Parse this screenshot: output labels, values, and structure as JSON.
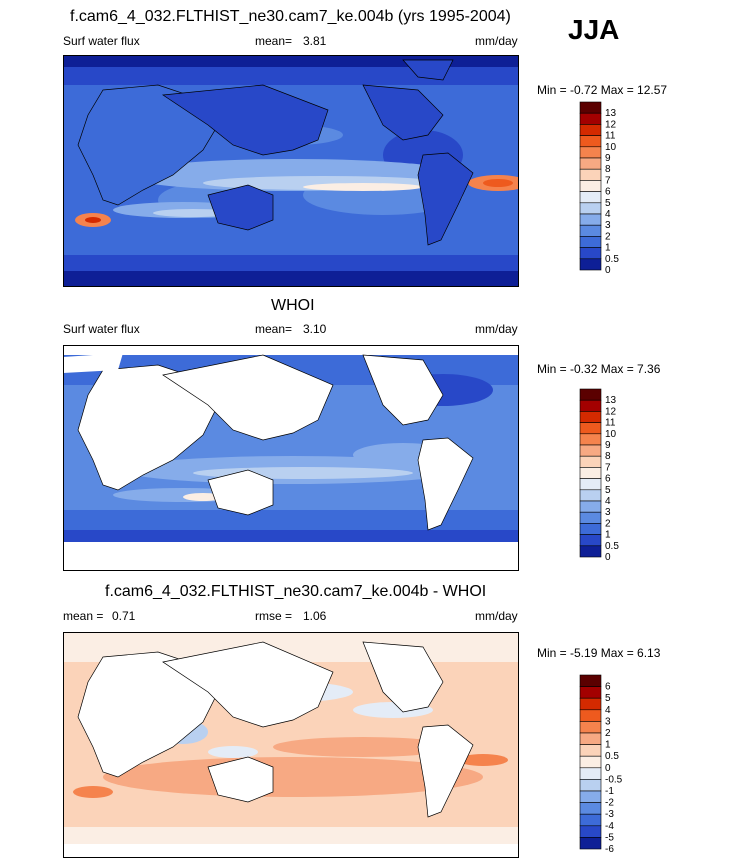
{
  "season": "JJA",
  "chart_data": [
    {
      "type": "heatmap",
      "title": "f.cam6_4_032.FLTHIST_ne30.cam7_ke.004b (yrs 1995-2004)",
      "left_label": "Surf water flux",
      "mean_label": "mean=",
      "mean_value": "3.81",
      "units": "mm/day",
      "min_max_text": "Min =  -0.72 Max =  12.57",
      "colorbar_levels": [
        "13",
        "12",
        "11",
        "10",
        "9",
        "8",
        "7",
        "6",
        "5",
        "4",
        "3",
        "2",
        "1",
        "0.5",
        "0"
      ],
      "colors": [
        "#5b0000",
        "#a30000",
        "#d42a00",
        "#ee5a1e",
        "#f5834d",
        "#f7a983",
        "#fbd3b9",
        "#fbeee4",
        "#e4ecf7",
        "#b9d0f0",
        "#86acea",
        "#5b8ae1",
        "#3d6bd8",
        "#2848c8",
        "#0e1f96"
      ]
    },
    {
      "type": "heatmap",
      "title": "WHOI",
      "left_label": "Surf water flux",
      "mean_label": "mean=",
      "mean_value": "3.10",
      "units": "mm/day",
      "min_max_text": "Min =  -0.32 Max =   7.36",
      "colorbar_levels": [
        "13",
        "12",
        "11",
        "10",
        "9",
        "8",
        "7",
        "6",
        "5",
        "4",
        "3",
        "2",
        "1",
        "0.5",
        "0"
      ],
      "colors": [
        "#5b0000",
        "#a30000",
        "#d42a00",
        "#ee5a1e",
        "#f5834d",
        "#f7a983",
        "#fbd3b9",
        "#fbeee4",
        "#e4ecf7",
        "#b9d0f0",
        "#86acea",
        "#5b8ae1",
        "#3d6bd8",
        "#2848c8",
        "#0e1f96"
      ]
    },
    {
      "type": "heatmap",
      "title": "f.cam6_4_032.FLTHIST_ne30.cam7_ke.004b - WHOI",
      "left_label": "mean =",
      "mean_value": "0.71",
      "rmse_label": "rmse =",
      "rmse_value": "1.06",
      "units": "mm/day",
      "min_max_text": "Min =  -5.19 Max =   6.13",
      "colorbar_levels": [
        "6",
        "5",
        "4",
        "3",
        "2",
        "1",
        "0.5",
        "0",
        "-0.5",
        "-1",
        "-2",
        "-3",
        "-4",
        "-5",
        "-6"
      ],
      "colors": [
        "#5b0000",
        "#a30000",
        "#d42a00",
        "#ee5a1e",
        "#f5834d",
        "#f7a983",
        "#fbd3b9",
        "#fbeee4",
        "#e4ecf7",
        "#b9d0f0",
        "#86acea",
        "#5b8ae1",
        "#3d6bd8",
        "#2848c8",
        "#0e1f96"
      ]
    }
  ]
}
